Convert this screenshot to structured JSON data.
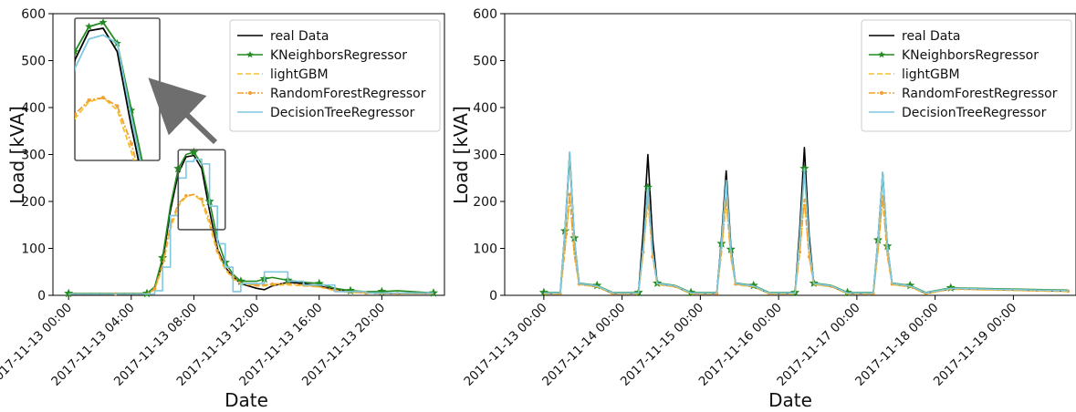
{
  "chart_data": [
    {
      "type": "line",
      "title": "",
      "xlabel": "Date",
      "ylabel": "Load [kVA]",
      "ylim": [
        0,
        600
      ],
      "yticks": [
        0,
        100,
        200,
        300,
        400,
        500,
        600
      ],
      "xrange_hours": [
        -1,
        24
      ],
      "xticks": [
        {
          "x": 0,
          "label": "2017-11-13 00:00"
        },
        {
          "x": 4,
          "label": "2017-11-13 04:00"
        },
        {
          "x": 8,
          "label": "2017-11-13 08:00"
        },
        {
          "x": 12,
          "label": "2017-11-13 12:00"
        },
        {
          "x": 16,
          "label": "2017-11-13 16:00"
        },
        {
          "x": 20,
          "label": "2017-11-13 20:00"
        }
      ],
      "legend_position": "top-right",
      "inset": "zoomed view of the peak region (about 07:00-10:00, 140-310 kVA) shown in the upper-left with an arrow",
      "series": [
        {
          "name": "real Data",
          "color": "#000000",
          "style": "solid",
          "x": [
            0,
            3,
            5,
            5.5,
            6,
            6.5,
            7,
            7.5,
            8,
            8.5,
            9,
            9.5,
            10,
            10.5,
            11,
            12,
            12.5,
            13,
            14,
            15,
            16,
            17,
            18,
            19,
            20,
            21,
            23.3
          ],
          "y": [
            3,
            3,
            3,
            15,
            70,
            180,
            260,
            295,
            298,
            270,
            180,
            100,
            60,
            40,
            25,
            15,
            12,
            20,
            28,
            25,
            20,
            12,
            8,
            5,
            4,
            4,
            4
          ]
        },
        {
          "name": "KNeighborsRegressor",
          "color": "#228b22",
          "style": "solid-star",
          "x": [
            0,
            3,
            5,
            5.5,
            6,
            6.5,
            7,
            7.5,
            8,
            8.5,
            9,
            9.5,
            10,
            10.5,
            11,
            12,
            12.5,
            13,
            14,
            15,
            16,
            17,
            18,
            19,
            20,
            21,
            23.3
          ],
          "y": [
            4,
            4,
            4,
            18,
            80,
            190,
            270,
            300,
            305,
            280,
            200,
            120,
            70,
            45,
            30,
            30,
            35,
            38,
            32,
            28,
            25,
            15,
            10,
            8,
            8,
            10,
            5
          ]
        },
        {
          "name": "lightGBM",
          "color": "#f2c230",
          "style": "dashed",
          "x": [
            0,
            3,
            5,
            5.5,
            6,
            6.5,
            7,
            7.5,
            8,
            8.5,
            9,
            9.5,
            10,
            10.5,
            11,
            12,
            12.5,
            13,
            14,
            15,
            16,
            17,
            18,
            19,
            20,
            21,
            23.3
          ],
          "y": [
            3,
            3,
            3,
            12,
            60,
            140,
            190,
            210,
            215,
            200,
            150,
            90,
            55,
            35,
            25,
            20,
            20,
            22,
            22,
            20,
            18,
            10,
            6,
            5,
            4,
            4,
            4
          ]
        },
        {
          "name": "RandomForestRegressor",
          "color": "#f2a033",
          "style": "dashdot-dot",
          "x": [
            0,
            3,
            5,
            5.5,
            6,
            6.5,
            7,
            7.5,
            8,
            8.5,
            9,
            9.5,
            10,
            10.5,
            11,
            12,
            12.5,
            13,
            14,
            15,
            16,
            17,
            18,
            19,
            20,
            21,
            23.3
          ],
          "y": [
            3,
            3,
            3,
            14,
            65,
            150,
            195,
            212,
            215,
            205,
            160,
            95,
            58,
            38,
            26,
            22,
            22,
            24,
            25,
            22,
            18,
            11,
            7,
            5,
            4,
            4,
            4
          ]
        },
        {
          "name": "DecisionTreeRegressor",
          "color": "#7fc8e0",
          "style": "steps",
          "x": [
            0,
            3,
            5,
            5.5,
            6,
            6.5,
            7,
            7.5,
            8,
            8.5,
            9,
            9.5,
            10,
            10.5,
            11,
            12,
            12.5,
            13,
            14,
            15,
            16,
            17,
            18,
            19,
            20,
            21,
            23.3
          ],
          "y": [
            3,
            3,
            3,
            10,
            60,
            170,
            250,
            285,
            290,
            280,
            190,
            110,
            60,
            8,
            25,
            25,
            50,
            50,
            30,
            22,
            22,
            8,
            8,
            5,
            5,
            5,
            5
          ]
        }
      ]
    },
    {
      "type": "line",
      "title": "",
      "xlabel": "Date",
      "ylabel": "Load [kVA]",
      "ylim": [
        0,
        600
      ],
      "yticks": [
        0,
        100,
        200,
        300,
        400,
        500,
        600
      ],
      "xrange_days": [
        -0.5,
        6.8
      ],
      "xticks": [
        {
          "x": 0,
          "label": "2017-11-13 00:00"
        },
        {
          "x": 1,
          "label": "2017-11-14 00:00"
        },
        {
          "x": 2,
          "label": "2017-11-15 00:00"
        },
        {
          "x": 3,
          "label": "2017-11-16 00:00"
        },
        {
          "x": 4,
          "label": "2017-11-17 00:00"
        },
        {
          "x": 5,
          "label": "2017-11-18 00:00"
        },
        {
          "x": 6,
          "label": "2017-11-19 00:00"
        }
      ],
      "legend_position": "top-right",
      "peaks": [
        {
          "day": 0.33,
          "real": 300,
          "knn": 305,
          "rf": 215
        },
        {
          "day": 1.33,
          "real": 300,
          "knn": 230,
          "rf": 205
        },
        {
          "day": 2.33,
          "real": 265,
          "knn": 245,
          "rf": 205
        },
        {
          "day": 3.33,
          "real": 315,
          "knn": 270,
          "rf": 205
        },
        {
          "day": 4.33,
          "real": 260,
          "knn": 262,
          "rf": 210
        }
      ],
      "series": [
        {
          "name": "real Data",
          "color": "#000000",
          "style": "solid"
        },
        {
          "name": "KNeighborsRegressor",
          "color": "#228b22",
          "style": "solid-star"
        },
        {
          "name": "lightGBM",
          "color": "#f2c230",
          "style": "dashed"
        },
        {
          "name": "RandomForestRegressor",
          "color": "#f2a033",
          "style": "dashdot-dot"
        },
        {
          "name": "DecisionTreeRegressor",
          "color": "#7fc8e0",
          "style": "steps"
        }
      ]
    }
  ]
}
